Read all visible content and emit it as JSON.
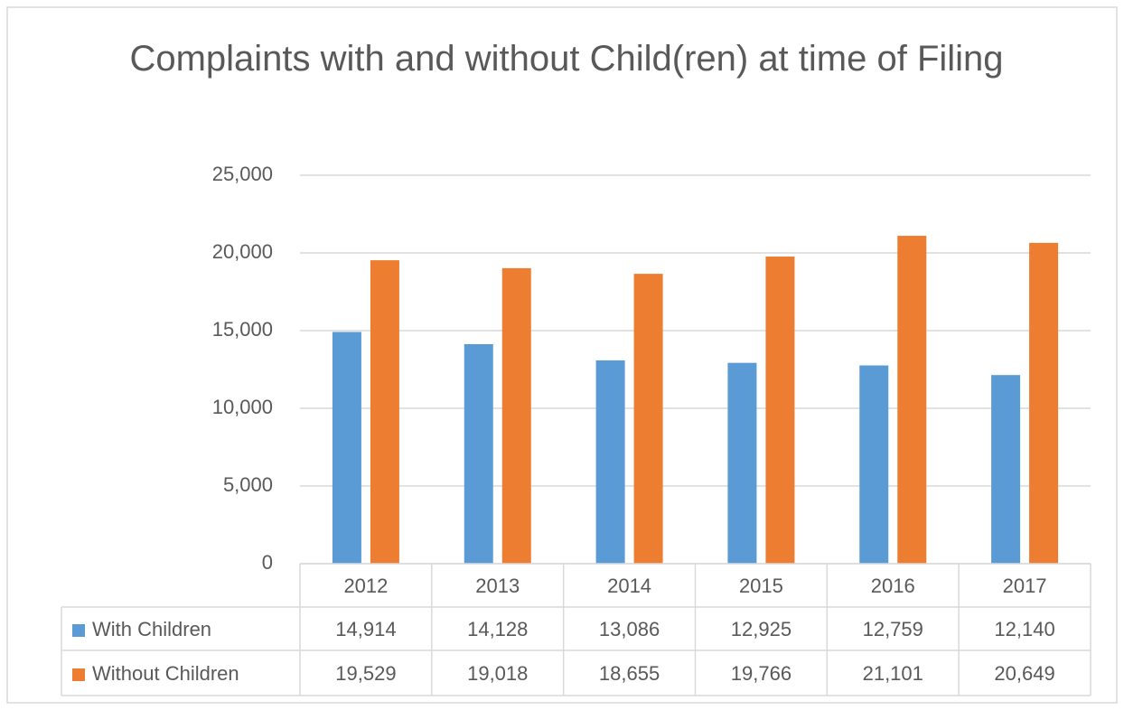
{
  "chart_data": {
    "type": "bar",
    "title": "Complaints with and without Child(ren) at time of Filing",
    "categories": [
      "2012",
      "2013",
      "2014",
      "2015",
      "2016",
      "2017"
    ],
    "series": [
      {
        "name": "With Children",
        "color": "#5b9bd5",
        "values": [
          14914,
          14128,
          13086,
          12925,
          12759,
          12140
        ],
        "value_labels": [
          "14,914",
          "14,128",
          "13,086",
          "12,925",
          "12,759",
          "12,140"
        ]
      },
      {
        "name": "Without Children",
        "color": "#ed7d31",
        "values": [
          19529,
          19018,
          18655,
          19766,
          21101,
          20649
        ],
        "value_labels": [
          "19,529",
          "19,018",
          "18,655",
          "19,766",
          "21,101",
          "20,649"
        ]
      }
    ],
    "ylim": [
      0,
      25000
    ],
    "yticks": [
      0,
      {
        "value": 5000,
        "label": "5,000"
      },
      {
        "value": 10000,
        "label": "10,000"
      },
      {
        "value": 15000,
        "label": "15,000"
      },
      {
        "value": 20000,
        "label": "20,000"
      },
      {
        "value": 25000,
        "label": "25,000"
      }
    ],
    "grid": true
  }
}
